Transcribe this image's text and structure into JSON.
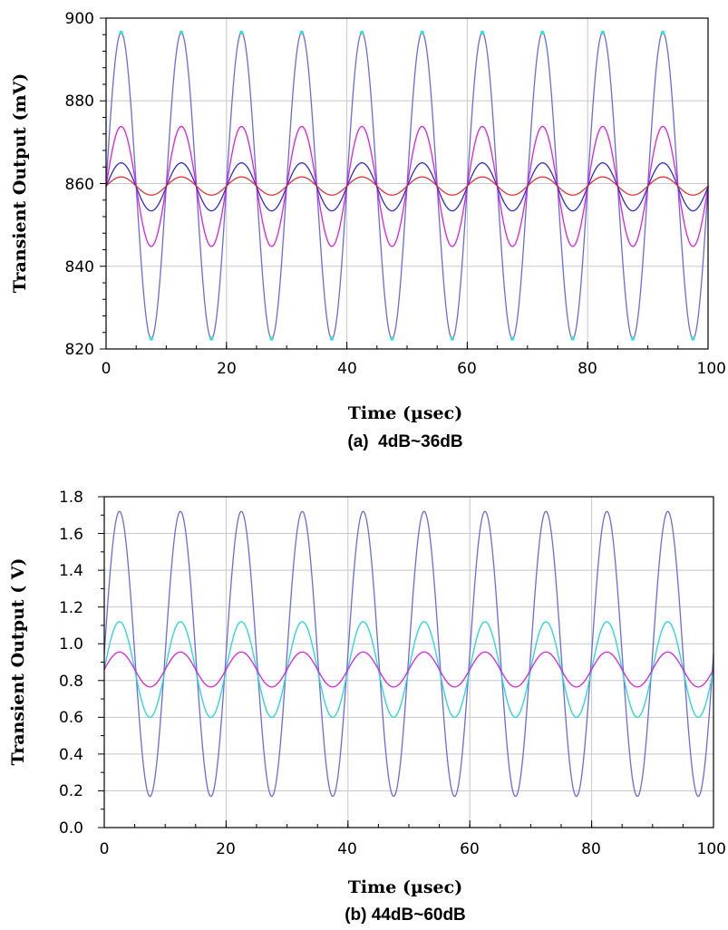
{
  "chart_data": [
    {
      "type": "line",
      "caption": "(a)  4dB~36dB",
      "xlabel": "Time (µsec)",
      "ylabel": "Transient Output (mV)",
      "xlim": [
        0,
        100
      ],
      "ylim": [
        820,
        900
      ],
      "x_ticks": [
        "0",
        "20",
        "40",
        "60",
        "80",
        "100"
      ],
      "y_ticks": [
        "820",
        "840",
        "860",
        "880",
        "900"
      ],
      "grid": true,
      "waveform": {
        "shape": "sine",
        "period_usec": 10,
        "peak_time_usec": 2.5
      },
      "series": [
        {
          "color": "#6a6ae6",
          "marker_color": "#33e0e0",
          "offset": 859.5,
          "amplitude": 37
        },
        {
          "color": "#e020e0",
          "offset": 859.3,
          "amplitude": 14.5
        },
        {
          "color": "#2b2bd6",
          "offset": 859.2,
          "amplitude": 5.8
        },
        {
          "color": "#e63030",
          "offset": 859.4,
          "amplitude": 2.2
        }
      ]
    },
    {
      "type": "line",
      "caption": "(b) 44dB~60dB",
      "xlabel": "Time (µsec)",
      "ylabel": "Transient Output ( V)",
      "xlim": [
        0,
        100
      ],
      "ylim": [
        0.0,
        1.8
      ],
      "x_ticks": [
        "0",
        "20",
        "40",
        "60",
        "80",
        "100"
      ],
      "y_ticks": [
        "0.0",
        "0.2",
        "0.4",
        "0.6",
        "0.8",
        "1.0",
        "1.2",
        "1.4",
        "1.6",
        "1.8"
      ],
      "grid": true,
      "waveform": {
        "shape": "sine",
        "period_usec": 10,
        "peak_time_usec": 2.5
      },
      "series": [
        {
          "color": "#6a6ae6",
          "offset": 0.945,
          "amplitude": 0.775
        },
        {
          "color": "#20d8d8",
          "offset": 0.86,
          "amplitude": 0.26
        },
        {
          "color": "#e020e0",
          "offset": 0.86,
          "amplitude": 0.095
        }
      ]
    }
  ]
}
